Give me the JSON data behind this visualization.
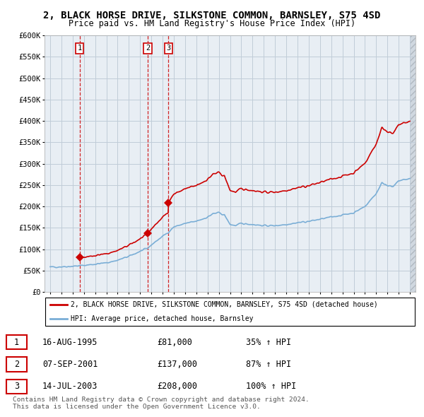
{
  "title": "2, BLACK HORSE DRIVE, SILKSTONE COMMON, BARNSLEY, S75 4SD",
  "subtitle": "Price paid vs. HM Land Registry's House Price Index (HPI)",
  "title_fontsize": 10,
  "subtitle_fontsize": 8.5,
  "xlim": [
    1992.5,
    2025.5
  ],
  "ylim": [
    0,
    600000
  ],
  "yticks": [
    0,
    50000,
    100000,
    150000,
    200000,
    250000,
    300000,
    350000,
    400000,
    450000,
    500000,
    550000,
    600000
  ],
  "ytick_labels": [
    "£0",
    "£50K",
    "£100K",
    "£150K",
    "£200K",
    "£250K",
    "£300K",
    "£350K",
    "£400K",
    "£450K",
    "£500K",
    "£550K",
    "£600K"
  ],
  "transactions": [
    {
      "date_year": 1995.62,
      "price": 81000,
      "label": "1"
    },
    {
      "date_year": 2001.68,
      "price": 137000,
      "label": "2"
    },
    {
      "date_year": 2003.53,
      "price": 208000,
      "label": "3"
    }
  ],
  "transaction_color": "#cc0000",
  "hpi_color": "#7aaed6",
  "chart_bg": "#e8eef4",
  "legend_line1": "2, BLACK HORSE DRIVE, SILKSTONE COMMON, BARNSLEY, S75 4SD (detached house)",
  "legend_line2": "HPI: Average price, detached house, Barnsley",
  "table_entries": [
    {
      "num": "1",
      "date": "16-AUG-1995",
      "price": "£81,000",
      "change": "35% ↑ HPI"
    },
    {
      "num": "2",
      "date": "07-SEP-2001",
      "price": "£137,000",
      "change": "87% ↑ HPI"
    },
    {
      "num": "3",
      "date": "14-JUL-2003",
      "price": "£208,000",
      "change": "100% ↑ HPI"
    }
  ],
  "footnote": "Contains HM Land Registry data © Crown copyright and database right 2024.\nThis data is licensed under the Open Government Licence v3.0.",
  "background_color": "#ffffff",
  "grid_color": "#c0ccd8"
}
